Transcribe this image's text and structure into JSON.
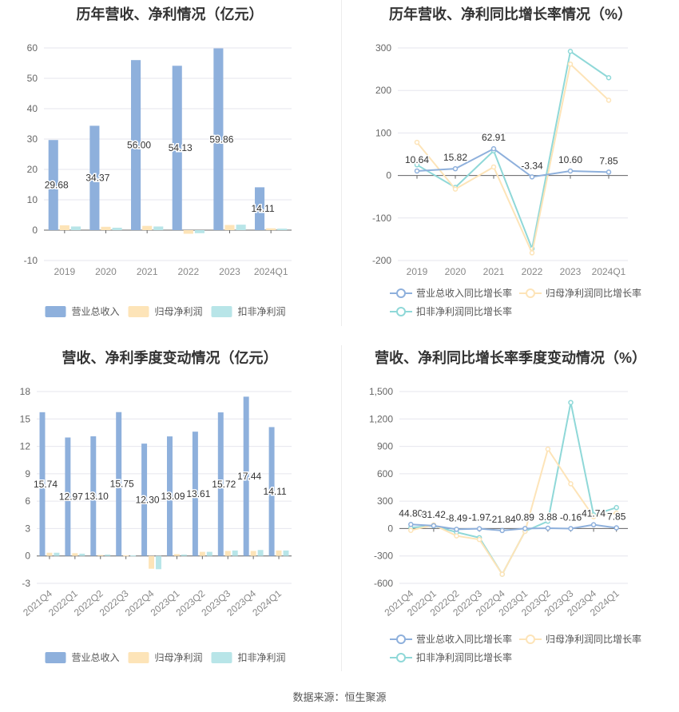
{
  "source": "数据来源：恒生聚源",
  "chart_data": [
    {
      "id": "annual-revenue-profit",
      "type": "bar",
      "title": "历年营收、净利情况（亿元）",
      "categories": [
        "2019",
        "2020",
        "2021",
        "2022",
        "2023",
        "2024Q1"
      ],
      "ylim": [
        -10,
        60
      ],
      "yticks": [
        -10,
        0,
        10,
        20,
        30,
        40,
        50,
        60
      ],
      "series": [
        {
          "name": "营业总收入",
          "color": "#8eb0dc",
          "values": [
            29.68,
            34.37,
            56.0,
            54.13,
            59.86,
            14.11
          ],
          "labels": [
            "29.68",
            "34.37",
            "56.00",
            "54.13",
            "59.86",
            "14.11"
          ]
        },
        {
          "name": "归母净利润",
          "color": "#fde4b8",
          "values": [
            1.6,
            1.1,
            1.4,
            -1.2,
            1.7,
            0.6
          ]
        },
        {
          "name": "扣非净利润",
          "color": "#b8e5e8",
          "values": [
            1.2,
            0.8,
            1.2,
            -1.0,
            1.8,
            0.5
          ]
        }
      ],
      "legend": "bottom",
      "grid": true
    },
    {
      "id": "annual-growth",
      "type": "line",
      "title": "历年营收、净利同比增长率情况（%）",
      "categories": [
        "2019",
        "2020",
        "2021",
        "2022",
        "2023",
        "2024Q1"
      ],
      "ylim": [
        -200,
        300
      ],
      "yticks": [
        -200,
        -100,
        0,
        100,
        200,
        300
      ],
      "series": [
        {
          "name": "营业总收入同比增长率",
          "color": "#8eb0dc",
          "values": [
            10.64,
            15.82,
            62.91,
            -3.34,
            10.6,
            7.85
          ],
          "labels": [
            "10.64",
            "15.82",
            "62.91",
            "-3.34",
            "10.60",
            "7.85"
          ]
        },
        {
          "name": "归母净利润同比增长率",
          "color": "#fde4b8",
          "values": [
            78,
            -32,
            20,
            -182,
            262,
            177
          ]
        },
        {
          "name": "扣非净利润同比增长率",
          "color": "#8fd8d8",
          "values": [
            25,
            -28,
            58,
            -172,
            292,
            230
          ]
        }
      ],
      "legend": "bottom",
      "grid": true
    },
    {
      "id": "quarterly-revenue-profit",
      "type": "bar",
      "title": "营收、净利季度变动情况（亿元）",
      "categories": [
        "2021Q4",
        "2022Q1",
        "2022Q2",
        "2022Q3",
        "2022Q4",
        "2023Q1",
        "2023Q2",
        "2023Q3",
        "2023Q4",
        "2024Q1"
      ],
      "ylim": [
        -3,
        18
      ],
      "yticks": [
        -3,
        0,
        3,
        6,
        9,
        12,
        15,
        18
      ],
      "series": [
        {
          "name": "营业总收入",
          "color": "#8eb0dc",
          "values": [
            15.74,
            12.97,
            13.1,
            15.75,
            12.3,
            13.09,
            13.61,
            15.72,
            17.44,
            14.11
          ],
          "labels": [
            "15.74",
            "12.97",
            "13.10",
            "15.75",
            "12.30",
            "13.09",
            "13.61",
            "15.72",
            "17.44",
            "14.11"
          ]
        },
        {
          "name": "归母净利润",
          "color": "#fde4b8",
          "values": [
            0.35,
            0.3,
            0.1,
            0.05,
            -1.4,
            0.2,
            0.45,
            0.55,
            0.55,
            0.6
          ]
        },
        {
          "name": "扣非净利润",
          "color": "#b8e5e8",
          "values": [
            0.35,
            0.25,
            0.15,
            0.05,
            -1.45,
            0.15,
            0.45,
            0.6,
            0.65,
            0.6
          ]
        }
      ],
      "legend": "bottom",
      "grid": true
    },
    {
      "id": "quarterly-growth",
      "type": "line",
      "title": "营收、净利同比增长率季度变动情况（%）",
      "categories": [
        "2021Q4",
        "2022Q1",
        "2022Q2",
        "2022Q3",
        "2022Q4",
        "2023Q1",
        "2023Q2",
        "2023Q3",
        "2023Q4",
        "2024Q1"
      ],
      "ylim": [
        -600,
        1500
      ],
      "yticks": [
        -600,
        -300,
        0,
        300,
        600,
        900,
        1200,
        1500
      ],
      "ytick_labels": [
        "-600",
        "-300",
        "0",
        "300",
        "600",
        "900",
        "1,200",
        "1,500"
      ],
      "series": [
        {
          "name": "营业总收入同比增长率",
          "color": "#8eb0dc",
          "values": [
            44.8,
            31.42,
            -8.49,
            -1.97,
            -21.84,
            0.89,
            3.88,
            -0.16,
            41.74,
            7.85
          ],
          "labels": [
            "44.80",
            "31.42",
            "-8.49",
            "-1.97",
            "-21.84",
            "0.89",
            "3.88",
            "-0.16",
            "41.74",
            "7.85"
          ]
        },
        {
          "name": "归母净利润同比增长率",
          "color": "#fde4b8",
          "values": [
            -20,
            40,
            -80,
            -120,
            -500,
            -30,
            870,
            490,
            130,
            170
          ]
        },
        {
          "name": "扣非净利润同比增长率",
          "color": "#8fd8d8",
          "values": [
            10,
            30,
            -40,
            -100,
            -500,
            -30,
            80,
            1380,
            150,
            230
          ]
        }
      ],
      "legend": "bottom",
      "grid": true
    }
  ]
}
